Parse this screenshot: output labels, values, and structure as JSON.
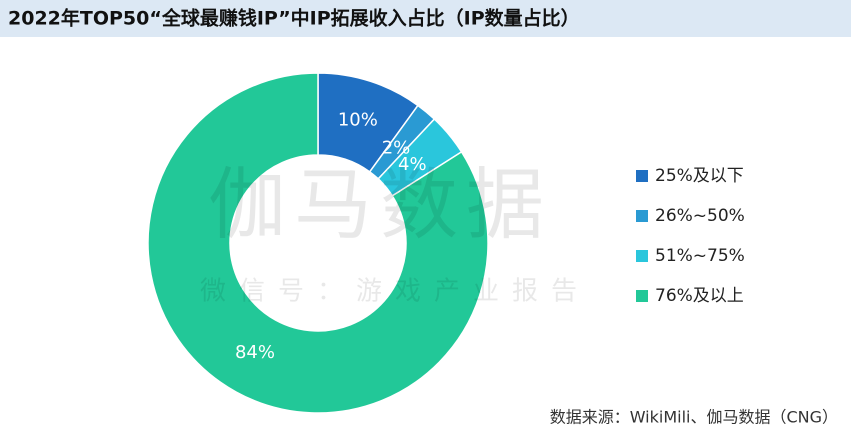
{
  "chart_data": {
    "type": "donut",
    "title": "2022年TOP50“全球最赚钱IP”中IP拓展收入占比（IP数量占比）",
    "categories": [
      "25%及以下",
      "26%~50%",
      "51%~75%",
      "76%及以上"
    ],
    "values": [
      10,
      2,
      4,
      84
    ],
    "value_labels": [
      "10%",
      "2%",
      "4%",
      "84%"
    ],
    "colors": [
      "#1f6fc2",
      "#2a9ad3",
      "#2ac6dc",
      "#22c898"
    ],
    "legend": "right",
    "watermark": [
      "伽马数据",
      "微信号：游戏产业报告"
    ],
    "source": "数据来源：WikiMili、伽马数据（CNG）"
  }
}
